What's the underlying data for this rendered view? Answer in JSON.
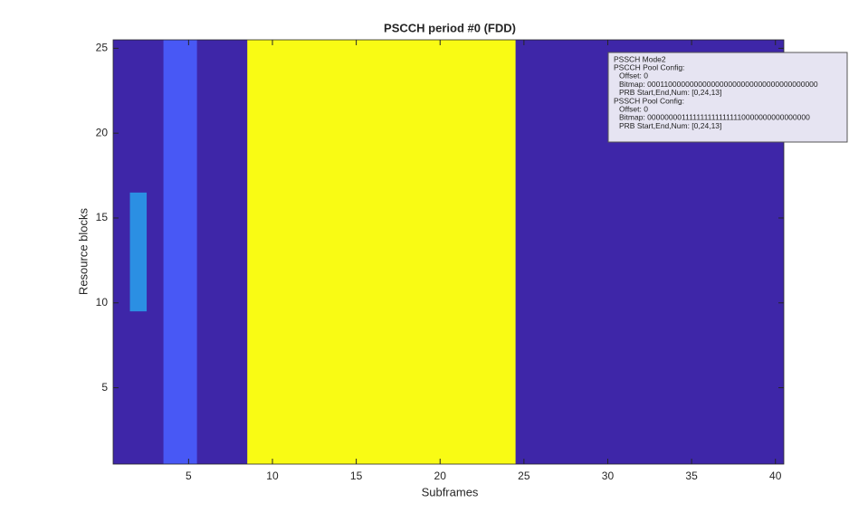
{
  "chart_data": {
    "type": "heatmap",
    "title": "PSCCH period #0 (FDD)",
    "x_label": "Subframes",
    "y_label": "Resource blocks",
    "background_color": "#3e26a8",
    "xlim": [
      0.5,
      40.5
    ],
    "ylim": [
      0.5,
      25.5
    ],
    "xticks": [
      5,
      10,
      15,
      20,
      25,
      30,
      35,
      40
    ],
    "yticks": [
      5,
      10,
      15,
      20,
      25
    ],
    "regions": [
      {
        "x": [
          3.5,
          5.5
        ],
        "y": [
          0.5,
          25.5
        ],
        "color": "#4858f5"
      },
      {
        "x": [
          8.5,
          24.5
        ],
        "y": [
          0.5,
          25.5
        ],
        "color": "#f9fb14"
      },
      {
        "x": [
          1.5,
          2.5
        ],
        "y": [
          9.5,
          16.5
        ],
        "color": "#2b8fe3"
      }
    ],
    "annotation": {
      "title": "PSSCH Mode2",
      "pools": [
        {
          "heading": "PSCCH Pool Config:",
          "lines": [
            "Offset: 0",
            "Bitmap: 0001100000000000000000000000000000000000",
            "PRB Start,End,Num: [0,24,13]"
          ]
        },
        {
          "heading": "PSSCH Pool Config:",
          "lines": [
            "Offset: 0",
            "Bitmap: 0000000011111111111111110000000000000000",
            "PRB Start,End,Num: [0,24,13]"
          ]
        }
      ]
    }
  }
}
